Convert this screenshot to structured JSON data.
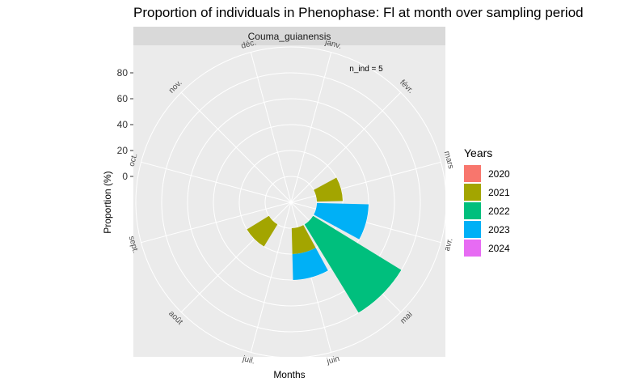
{
  "chart_data": {
    "type": "bar",
    "coord": "polar",
    "title": "Proportion of individuals in Phenophase: Fl at month over sampling period",
    "facet": "Couma_guianensis",
    "xlabel": "Months",
    "ylabel": "Proportion (%)",
    "y_ticks": [
      "0",
      "20",
      "40",
      "60",
      "80"
    ],
    "ylim": [
      -20,
      100
    ],
    "grid": true,
    "annotation": "n_ind =  5",
    "categories": [
      "janv.",
      "févr.",
      "mars",
      "avr.",
      "mai",
      "juin",
      "juil.",
      "août",
      "sept.",
      "oct.",
      "nov.",
      "déc."
    ],
    "legend": {
      "title": "Years",
      "position": "right",
      "entries": [
        {
          "label": "2020",
          "color": "#F8766D"
        },
        {
          "label": "2021",
          "color": "#A3A500"
        },
        {
          "label": "2022",
          "color": "#00BF7D"
        },
        {
          "label": "2023",
          "color": "#00B0F6"
        },
        {
          "label": "2024",
          "color": "#E76BF3"
        }
      ]
    },
    "series": [
      {
        "name": "2020",
        "color": "#F8766D",
        "values": [
          0,
          0,
          0,
          0,
          0,
          0,
          0,
          0,
          0,
          0,
          0,
          0
        ]
      },
      {
        "name": "2021",
        "color": "#A3A500",
        "values": [
          0,
          0,
          20,
          0,
          0,
          20,
          0,
          20,
          0,
          0,
          0,
          0
        ]
      },
      {
        "name": "2022",
        "color": "#00BF7D",
        "values": [
          0,
          0,
          0,
          0,
          80,
          0,
          0,
          0,
          0,
          0,
          0,
          0
        ]
      },
      {
        "name": "2023",
        "color": "#00B0F6",
        "values": [
          0,
          0,
          0,
          40,
          0,
          20,
          0,
          0,
          0,
          0,
          0,
          0
        ]
      },
      {
        "name": "2024",
        "color": "#E76BF3",
        "values": [
          0,
          0,
          0,
          0,
          0,
          0,
          0,
          0,
          0,
          0,
          0,
          0
        ]
      }
    ]
  }
}
